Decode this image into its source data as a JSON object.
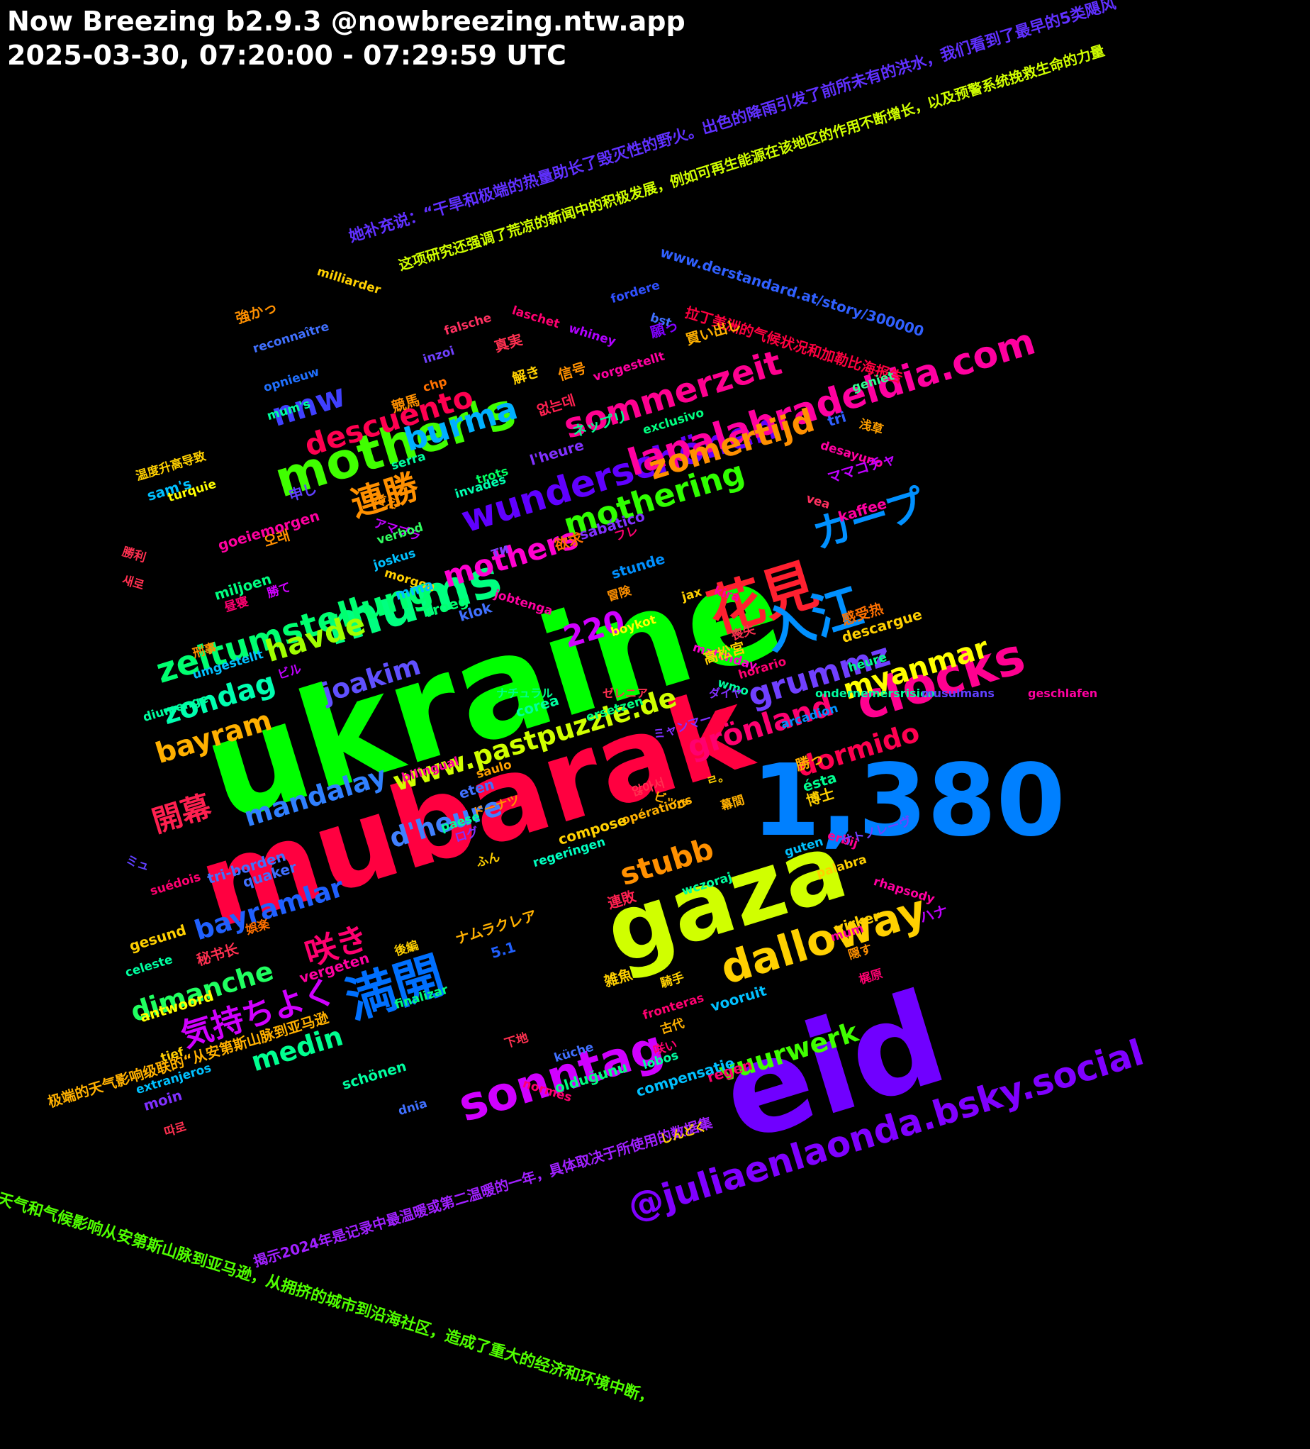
{
  "header": {
    "title": "Now Breezing b2.9.3 @nowbreezing.ntw.app",
    "range": "2025-03-30, 07:20:00 - 07:29:59 UTC"
  },
  "words": [
    {
      "t": "ukraine",
      "c": "#00ff00"
    },
    {
      "t": "mubarak",
      "c": "#ff0040"
    },
    {
      "t": "eid",
      "c": "#7000ff"
    },
    {
      "t": "1,380",
      "c": "#0080ff"
    },
    {
      "t": "gaza",
      "c": "#d0ff00"
    },
    {
      "t": "mother's",
      "c": "#40ff00"
    },
    {
      "t": "mums",
      "c": "#00ff80"
    },
    {
      "t": "花見",
      "c": "#ff2030"
    },
    {
      "t": "入江",
      "c": "#0090ff"
    },
    {
      "t": "clocks",
      "c": "#ff0090"
    },
    {
      "t": "sonntag",
      "c": "#d000ff"
    },
    {
      "t": "dalloway",
      "c": "#ffd000"
    },
    {
      "t": "満開",
      "c": "#0070ff"
    },
    {
      "t": "@juliaenlaonda.bsky.social",
      "c": "#8000ff"
    },
    {
      "t": "sommerzeit",
      "c": "#ff0090"
    },
    {
      "t": "wunderschönen",
      "c": "#6000ff"
    },
    {
      "t": "lapalabradeldia.com",
      "c": "#ff00a0"
    },
    {
      "t": "カープ",
      "c": "#0090ff"
    },
    {
      "t": "grönland",
      "c": "#ff0070"
    },
    {
      "t": "zomertijd",
      "c": "#ff9000"
    },
    {
      "t": "descuento",
      "c": "#ff0050"
    },
    {
      "t": "burma",
      "c": "#00b0ff"
    },
    {
      "t": "nnw",
      "c": "#4040ff"
    },
    {
      "t": "連勝",
      "c": "#ff9000"
    },
    {
      "t": "zeitumstellung",
      "c": "#00ff70"
    },
    {
      "t": "mothering",
      "c": "#30ff00"
    },
    {
      "t": "mothers",
      "c": "#ff00d0"
    },
    {
      "t": "grummz",
      "c": "#7040ff"
    },
    {
      "t": "220",
      "c": "#d000ff"
    },
    {
      "t": "havde",
      "c": "#a0ff00"
    },
    {
      "t": "zondag",
      "c": "#00ffb0"
    },
    {
      "t": "bayram",
      "c": "#ffb000"
    },
    {
      "t": "joakim",
      "c": "#6050ff"
    },
    {
      "t": "myanmar",
      "c": "#ffff00"
    },
    {
      "t": "開幕",
      "c": "#ff2050"
    },
    {
      "t": "mandalay",
      "c": "#3080ff"
    },
    {
      "t": "www.pastpuzzle.de",
      "c": "#d0ff00"
    },
    {
      "t": "dormido",
      "c": "#ff0050"
    },
    {
      "t": "d'heure",
      "c": "#4080ff"
    },
    {
      "t": "stubb",
      "c": "#ff9000"
    },
    {
      "t": "bayramlar",
      "c": "#2060ff"
    },
    {
      "t": "咲き",
      "c": "#ff0070"
    },
    {
      "t": "dimanche",
      "c": "#20ff60"
    },
    {
      "t": "気持ちよく",
      "c": "#d000ff"
    },
    {
      "t": "medin",
      "c": "#00ff90"
    },
    {
      "t": "vuurwerk",
      "c": "#40ff00"
    },
    {
      "t": "她补充说：“干旱和极端的热量助长了毁灭性的野火。出色的降雨引发了前所未有的洪水，我们看到了最早的5类飓风",
      "c": "#6030ff"
    },
    {
      "t": "www.derstandard.at/story/300000",
      "c": "#3060ff"
    },
    {
      "t": "这项研究还强调了荒凉的新闻中的积极发展，例如可再生能源在该地区的作用不断增长，以及预警系统挽救生命的力量",
      "c": "#d0ff00"
    },
    {
      "t": "拉丁美洲的气候状况和加勒比海报告",
      "c": "#ff0040"
    },
    {
      "t": "极端的天气影响级联的“从安第斯山脉到亚马逊",
      "c": "#ffb000"
    },
    {
      "t": "揭示2024年是记录中最温暖或第二温暖的一年，具体取决于所使用的数据集",
      "c": "#a020ff"
    },
    {
      "t": "天气和气候影响从安第斯山脉到亚马逊，从拥挤的城市到沿海社区，造成了重大的经济和环境中断，",
      "c": "#50ff00"
    },
    {
      "t": "milliarder",
      "c": "#ffd000"
    },
    {
      "t": "fordere",
      "c": "#3050ff"
    },
    {
      "t": "laschet",
      "c": "#ff0070"
    },
    {
      "t": "bst",
      "c": "#4070ff"
    },
    {
      "t": "whiney",
      "c": "#b000ff"
    },
    {
      "t": "強かっ",
      "c": "#ff9000"
    },
    {
      "t": "真実",
      "c": "#ff3050"
    },
    {
      "t": "願っ",
      "c": "#8000ff"
    },
    {
      "t": "買い出し",
      "c": "#ffb000"
    },
    {
      "t": "reconnaître",
      "c": "#4070ff"
    },
    {
      "t": "falsche",
      "c": "#ff3060"
    },
    {
      "t": "解き",
      "c": "#ffd000"
    },
    {
      "t": "信号",
      "c": "#ff9000"
    },
    {
      "t": "inzoi",
      "c": "#7040ff"
    },
    {
      "t": "vorgestellt",
      "c": "#ff00a0"
    },
    {
      "t": "geniet",
      "c": "#30ff90"
    },
    {
      "t": "opnieuw",
      "c": "#2070ff"
    },
    {
      "t": "競馬",
      "c": "#ff9000"
    },
    {
      "t": "chp",
      "c": "#ff7000"
    },
    {
      "t": "없는데",
      "c": "#ff2050"
    },
    {
      "t": "mum's",
      "c": "#00ffa0"
    },
    {
      "t": "ネップリ",
      "c": "#00ff90"
    },
    {
      "t": "exclusivo",
      "c": "#00ff80"
    },
    {
      "t": "tri",
      "c": "#3060ff"
    },
    {
      "t": "浅草",
      "c": "#ffa000"
    },
    {
      "t": "desayuno",
      "c": "#ff00a0"
    },
    {
      "t": "l'heure",
      "c": "#8030ff"
    },
    {
      "t": "ママコチャ",
      "c": "#c000ff"
    },
    {
      "t": "温度升高导致",
      "c": "#ffd000"
    },
    {
      "t": "serra",
      "c": "#00ffa0"
    },
    {
      "t": "trots",
      "c": "#00ff60"
    },
    {
      "t": "sam's",
      "c": "#00c0ff"
    },
    {
      "t": "申し",
      "c": "#6040ff"
    },
    {
      "t": "植え",
      "c": "#ff9000"
    },
    {
      "t": "invades",
      "c": "#00ffb0"
    },
    {
      "t": "vea",
      "c": "#ff3060"
    },
    {
      "t": "turquie",
      "c": "#ffff00"
    },
    {
      "t": "kaffee",
      "c": "#ff00a0"
    },
    {
      "t": "오래",
      "c": "#ff9000"
    },
    {
      "t": "アマプラ",
      "c": "#c000ff"
    },
    {
      "t": "sabático",
      "c": "#8030ff"
    },
    {
      "t": "verbod",
      "c": "#30ff60"
    },
    {
      "t": "フレ",
      "c": "#ff0070"
    },
    {
      "t": "goeiemorgen",
      "c": "#ff00a0"
    },
    {
      "t": "ти",
      "c": "#8040ff"
    },
    {
      "t": "欲求",
      "c": "#ff7000"
    },
    {
      "t": "勝利",
      "c": "#ff3050"
    },
    {
      "t": "joskus",
      "c": "#00c0ff"
    },
    {
      "t": "morgon",
      "c": "#ffd000"
    },
    {
      "t": "jobtenga",
      "c": "#ff00a0"
    },
    {
      "t": "stunde",
      "c": "#0090ff"
    },
    {
      "t": "새로",
      "c": "#ff3050"
    },
    {
      "t": "miljoen",
      "c": "#00ff80"
    },
    {
      "t": "勝て",
      "c": "#d000ff"
    },
    {
      "t": "mma",
      "c": "#00c0ff"
    },
    {
      "t": "冒険",
      "c": "#ff9000"
    },
    {
      "t": "jax",
      "c": "#ffd000"
    },
    {
      "t": "kira",
      "c": "#ff00a0"
    },
    {
      "t": "vroeg",
      "c": "#00ff70"
    },
    {
      "t": "klok",
      "c": "#4070ff"
    },
    {
      "t": "昼寝",
      "c": "#ff0070"
    },
    {
      "t": "感受热",
      "c": "#ff7000"
    },
    {
      "t": "boykot",
      "c": "#ffff00"
    },
    {
      "t": "喪失",
      "c": "#ff3050"
    },
    {
      "t": "descargue",
      "c": "#ffd000"
    },
    {
      "t": "matchday",
      "c": "#ff00d0"
    },
    {
      "t": "刑事",
      "c": "#ff9000"
    },
    {
      "t": "高松宮",
      "c": "#ffd000"
    },
    {
      "t": "umgestellt",
      "c": "#00c0ff"
    },
    {
      "t": "ビル",
      "c": "#c000ff"
    },
    {
      "t": "heure",
      "c": "#00ff90"
    },
    {
      "t": "wmo",
      "c": "#00ffa0"
    },
    {
      "t": "horario",
      "c": "#ff0070"
    },
    {
      "t": "ersetzen",
      "c": "#00ff80"
    },
    {
      "t": "diumenge",
      "c": "#00ffa0"
    },
    {
      "t": "corea",
      "c": "#00ffa0"
    },
    {
      "t": "ミャンマー",
      "c": "#8030ff"
    },
    {
      "t": "arcadion",
      "c": "#0090ff"
    },
    {
      "t": "勝っ",
      "c": "#ffb000"
    },
    {
      "t": "bilingual",
      "c": "#ff00a0"
    },
    {
      "t": "saulo",
      "c": "#ffa000"
    },
    {
      "t": "ㄹ。",
      "c": "#ffd000"
    },
    {
      "t": "ésta",
      "c": "#00ff90"
    },
    {
      "t": "eten",
      "c": "#4070ff"
    },
    {
      "t": "않아서",
      "c": "#ff3050"
    },
    {
      "t": "博士",
      "c": "#ffd000"
    },
    {
      "t": "ドーナツ",
      "c": "#ff9000"
    },
    {
      "t": "ビッグ",
      "c": "#ffb000"
    },
    {
      "t": "幕間",
      "c": "#ffb000"
    },
    {
      "t": "opérations",
      "c": "#ffb000"
    },
    {
      "t": "paese",
      "c": "#00ffa0"
    },
    {
      "t": "compose",
      "c": "#ffd000"
    },
    {
      "t": "ログ",
      "c": "#8030ff"
    },
    {
      "t": "erbij",
      "c": "#ff0090"
    },
    {
      "t": "サトノレーヴ",
      "c": "#7040ff"
    },
    {
      "t": "ミュ",
      "c": "#6040ff"
    },
    {
      "t": "ふん",
      "c": "#ffd000"
    },
    {
      "t": "regeringen",
      "c": "#00ffc0"
    },
    {
      "t": "guten",
      "c": "#00c0ff"
    },
    {
      "t": "palabra",
      "c": "#ffd000"
    },
    {
      "t": "tri-borden",
      "c": "#4070ff"
    },
    {
      "t": "quaker",
      "c": "#4070ff"
    },
    {
      "t": "rhapsody",
      "c": "#ff00a0"
    },
    {
      "t": "wczoraj",
      "c": "#00ffa0"
    },
    {
      "t": "suédois",
      "c": "#ff0070"
    },
    {
      "t": "連敗",
      "c": "#ff2050"
    },
    {
      "t": "ハナ",
      "c": "#c000ff"
    },
    {
      "t": "gesund",
      "c": "#ffd000"
    },
    {
      "t": "virker",
      "c": "#ffd000"
    },
    {
      "t": "mum",
      "c": "#ff00a0"
    },
    {
      "t": "娯楽",
      "c": "#ff7000"
    },
    {
      "t": "後編",
      "c": "#ffd000"
    },
    {
      "t": "ナムラクレア",
      "c": "#ffb000"
    },
    {
      "t": "秘书长",
      "c": "#ff3050"
    },
    {
      "t": "celeste",
      "c": "#00ffa0"
    },
    {
      "t": "5.1",
      "c": "#2060ff"
    },
    {
      "t": "vergeten",
      "c": "#ff00a0"
    },
    {
      "t": "隠す",
      "c": "#ff9000"
    },
    {
      "t": "騎手",
      "c": "#ffd000"
    },
    {
      "t": "finalizar",
      "c": "#00ff80"
    },
    {
      "t": "雑魚",
      "c": "#ffd000"
    },
    {
      "t": "梶原",
      "c": "#ff0070"
    },
    {
      "t": "antwoord",
      "c": "#ffff00"
    },
    {
      "t": "vooruit",
      "c": "#00c0ff"
    },
    {
      "t": "fronteras",
      "c": "#ff0070"
    },
    {
      "t": "古代",
      "c": "#ffb000"
    },
    {
      "t": "tief",
      "c": "#ffd000"
    },
    {
      "t": "下地",
      "c": "#ff3050"
    },
    {
      "t": "咲い",
      "c": "#ff0070"
    },
    {
      "t": "küche",
      "c": "#4070ff"
    },
    {
      "t": "lobos",
      "c": "#00ffa0"
    },
    {
      "t": "normes",
      "c": "#ff0070"
    },
    {
      "t": "extranjeros",
      "c": "#00c0ff"
    },
    {
      "t": "regen",
      "c": "#ff0070"
    },
    {
      "t": "schönen",
      "c": "#00ffa0"
    },
    {
      "t": "moin",
      "c": "#8030ff"
    },
    {
      "t": "olduğunu",
      "c": "#00ff80"
    },
    {
      "t": "compensatie",
      "c": "#00c0ff"
    },
    {
      "t": "dnia",
      "c": "#4070ff"
    },
    {
      "t": "따로",
      "c": "#ff3050"
    },
    {
      "t": "しんどく",
      "c": "#ffd000"
    },
    {
      "t": "ナチュラル",
      "c": "#00ff90"
    },
    {
      "t": "ゼレニア",
      "c": "#ff3050"
    },
    {
      "t": "ダイヤ",
      "c": "#8030ff"
    },
    {
      "t": "ondernemersrisico",
      "c": "#00ffa0"
    },
    {
      "t": "musulmans",
      "c": "#6040ff"
    },
    {
      "t": "geschlafen",
      "c": "#ff00a0"
    }
  ]
}
